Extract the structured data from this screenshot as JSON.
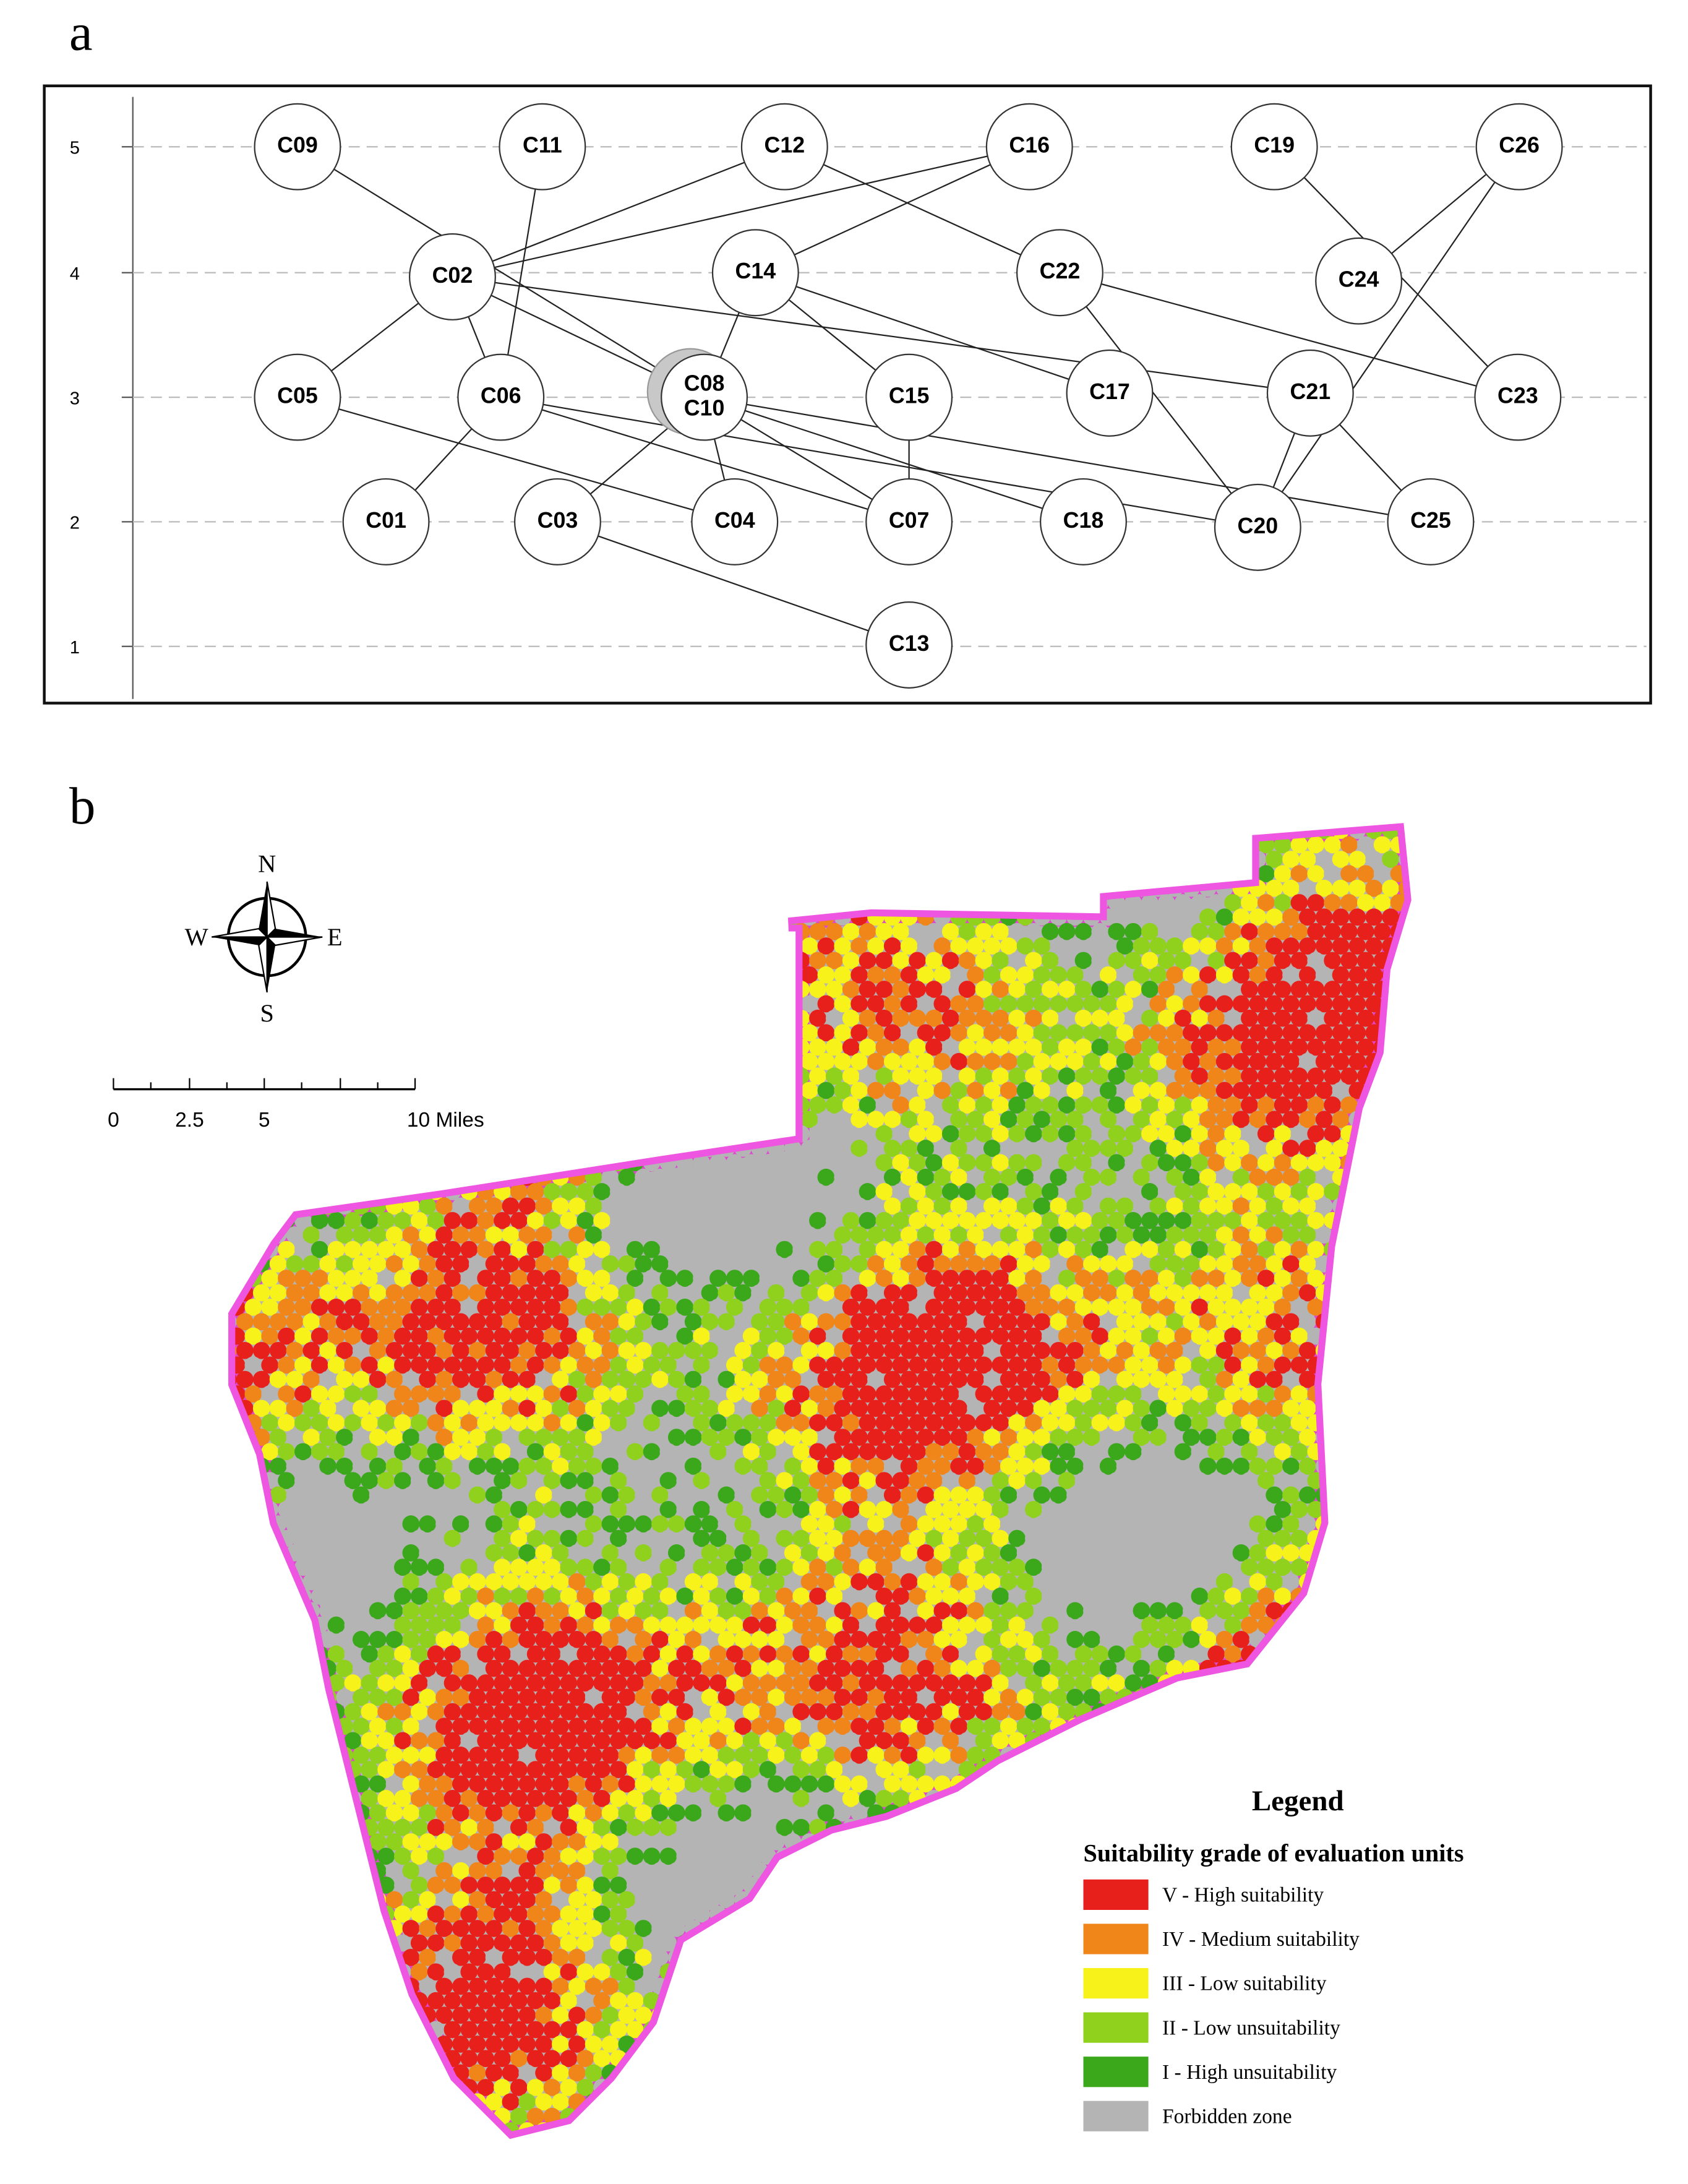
{
  "panel_a": {
    "label": "a",
    "levels": [
      "5",
      "4",
      "3",
      "2",
      "1"
    ],
    "nodes": [
      [
        "C09"
      ],
      [
        "C11"
      ],
      [
        "C12"
      ],
      [
        "C16"
      ],
      [
        "C19"
      ],
      [
        "C26"
      ],
      [
        "C02"
      ],
      [
        "C14"
      ],
      [
        "C22"
      ],
      [
        "C24"
      ],
      [
        "C05"
      ],
      [
        "C06"
      ],
      [
        "C08",
        "C10"
      ],
      [
        "C15"
      ],
      [
        "C17"
      ],
      [
        "C21"
      ],
      [
        "C23"
      ],
      [
        "C01"
      ],
      [
        "C03"
      ],
      [
        "C04"
      ],
      [
        "C07"
      ],
      [
        "C18"
      ],
      [
        "C20"
      ],
      [
        "C25"
      ],
      [
        "C13"
      ]
    ]
  },
  "panel_b": {
    "label": "b",
    "compass": {
      "north": "N",
      "south": "S",
      "east": "E",
      "west": "W"
    },
    "scale_labels": [
      "0",
      "2.5",
      "5",
      "10 Miles"
    ],
    "legend": {
      "title": "Legend",
      "subtitle": "Suitability grade of evaluation units",
      "items": [
        {
          "label": "V - High suitability",
          "color": "#e8201c"
        },
        {
          "label": "IV - Medium suitability",
          "color": "#f08519"
        },
        {
          "label": "III - Low suitability",
          "color": "#f7f21a"
        },
        {
          "label": "II - Low unsuitability",
          "color": "#8fd11c"
        },
        {
          "label": "I - High unsuitability",
          "color": "#3aa81a"
        },
        {
          "label": "Forbidden zone",
          "color": "#b4b4b4"
        }
      ]
    }
  }
}
